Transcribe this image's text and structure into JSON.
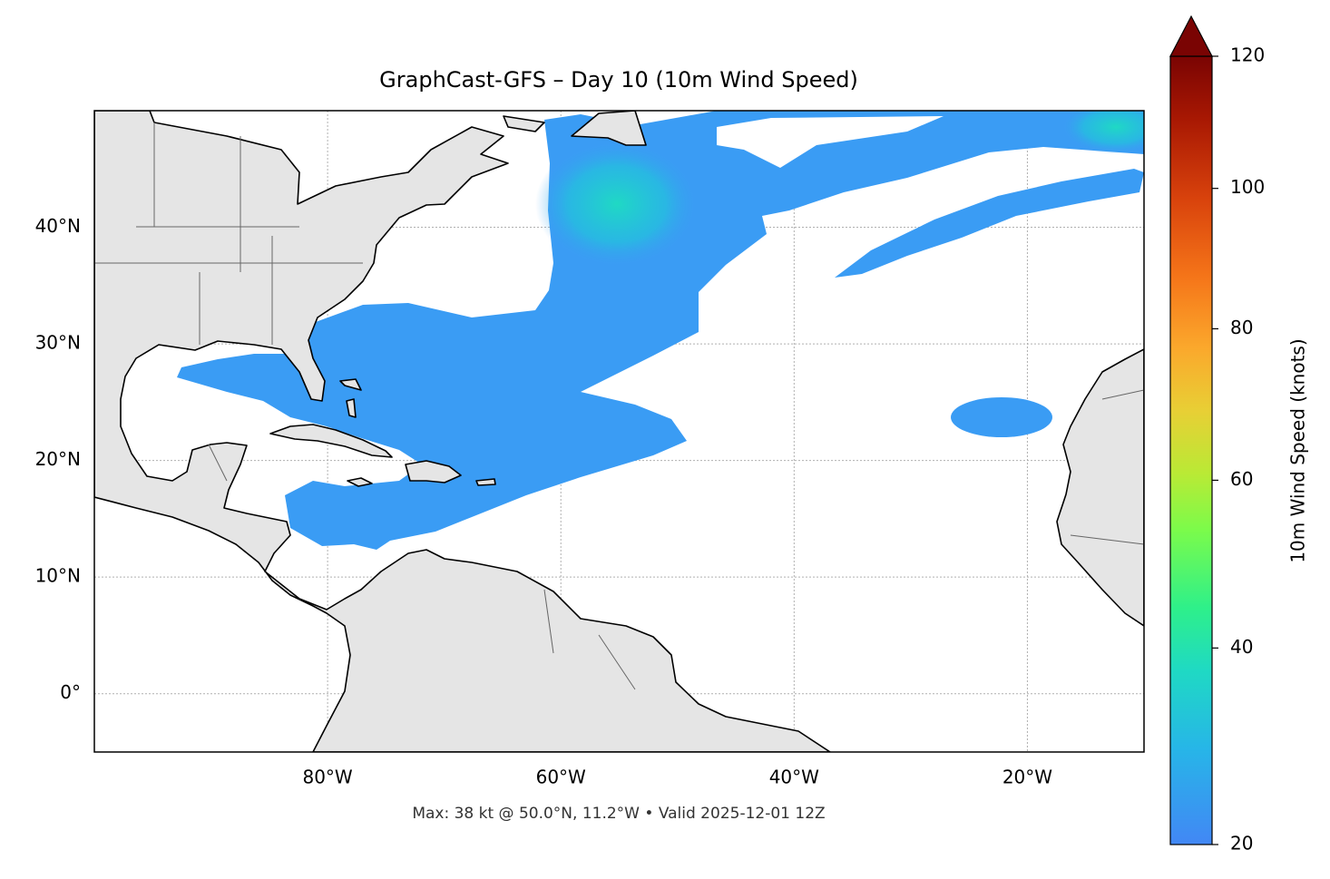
{
  "title": "GraphCast-GFS – Day 10 (10m Wind Speed)",
  "footnote": "Max: 38 kt @ 50.0°N, 11.2°W • Valid 2025-12-01 12Z",
  "map": {
    "lon_range": [
      -100,
      -10
    ],
    "lat_range": [
      -5,
      50
    ],
    "grid": true,
    "lon_ticks": [
      {
        "value": -80,
        "label": "80°W"
      },
      {
        "value": -60,
        "label": "60°W"
      },
      {
        "value": -40,
        "label": "40°W"
      },
      {
        "value": -20,
        "label": "20°W"
      }
    ],
    "lat_ticks": [
      {
        "value": 0,
        "label": "0°"
      },
      {
        "value": 10,
        "label": "10°N"
      },
      {
        "value": 20,
        "label": "20°N"
      },
      {
        "value": 30,
        "label": "30°N"
      },
      {
        "value": 40,
        "label": "40°N"
      }
    ]
  },
  "colorbar": {
    "label": "10m Wind Speed (knots)",
    "range": [
      20,
      120
    ],
    "ticks": [
      20,
      40,
      60,
      80,
      100,
      120
    ],
    "scale": "power",
    "gamma": 0.7
  }
}
